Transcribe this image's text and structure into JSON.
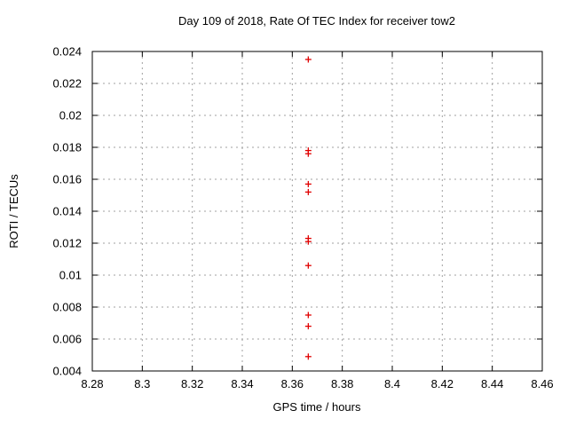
{
  "chart_data": {
    "type": "scatter",
    "title": "Day 109 of 2018, Rate Of TEC Index for receiver tow2",
    "xlabel": "GPS time / hours",
    "ylabel": "ROTI / TECUs",
    "xlim": [
      8.28,
      8.46
    ],
    "ylim": [
      0.004,
      0.024
    ],
    "xtick_labels": [
      "8.28",
      "8.3",
      "8.32",
      "8.34",
      "8.36",
      "8.38",
      "8.4",
      "8.42",
      "8.44",
      "8.46"
    ],
    "ytick_labels": [
      "0.004",
      "0.006",
      "0.008",
      "0.01",
      "0.012",
      "0.014",
      "0.016",
      "0.018",
      "0.02",
      "0.022",
      "0.024"
    ],
    "grid": true,
    "legend": "none",
    "marker": "plus",
    "colors": {
      "marker": "#e00000",
      "grid": "#a0a0a0",
      "frame": "#000000",
      "text": "#000000"
    },
    "series": [
      {
        "name": "ROTI",
        "points": [
          {
            "x": 8.3664,
            "y": 0.0235
          },
          {
            "x": 8.3664,
            "y": 0.0178
          },
          {
            "x": 8.3664,
            "y": 0.0176
          },
          {
            "x": 8.3664,
            "y": 0.0157
          },
          {
            "x": 8.3664,
            "y": 0.0152
          },
          {
            "x": 8.3664,
            "y": 0.0123
          },
          {
            "x": 8.3664,
            "y": 0.0121
          },
          {
            "x": 8.3664,
            "y": 0.0106
          },
          {
            "x": 8.3664,
            "y": 0.0075
          },
          {
            "x": 8.3664,
            "y": 0.0068
          },
          {
            "x": 8.3664,
            "y": 0.0049
          }
        ]
      }
    ]
  }
}
